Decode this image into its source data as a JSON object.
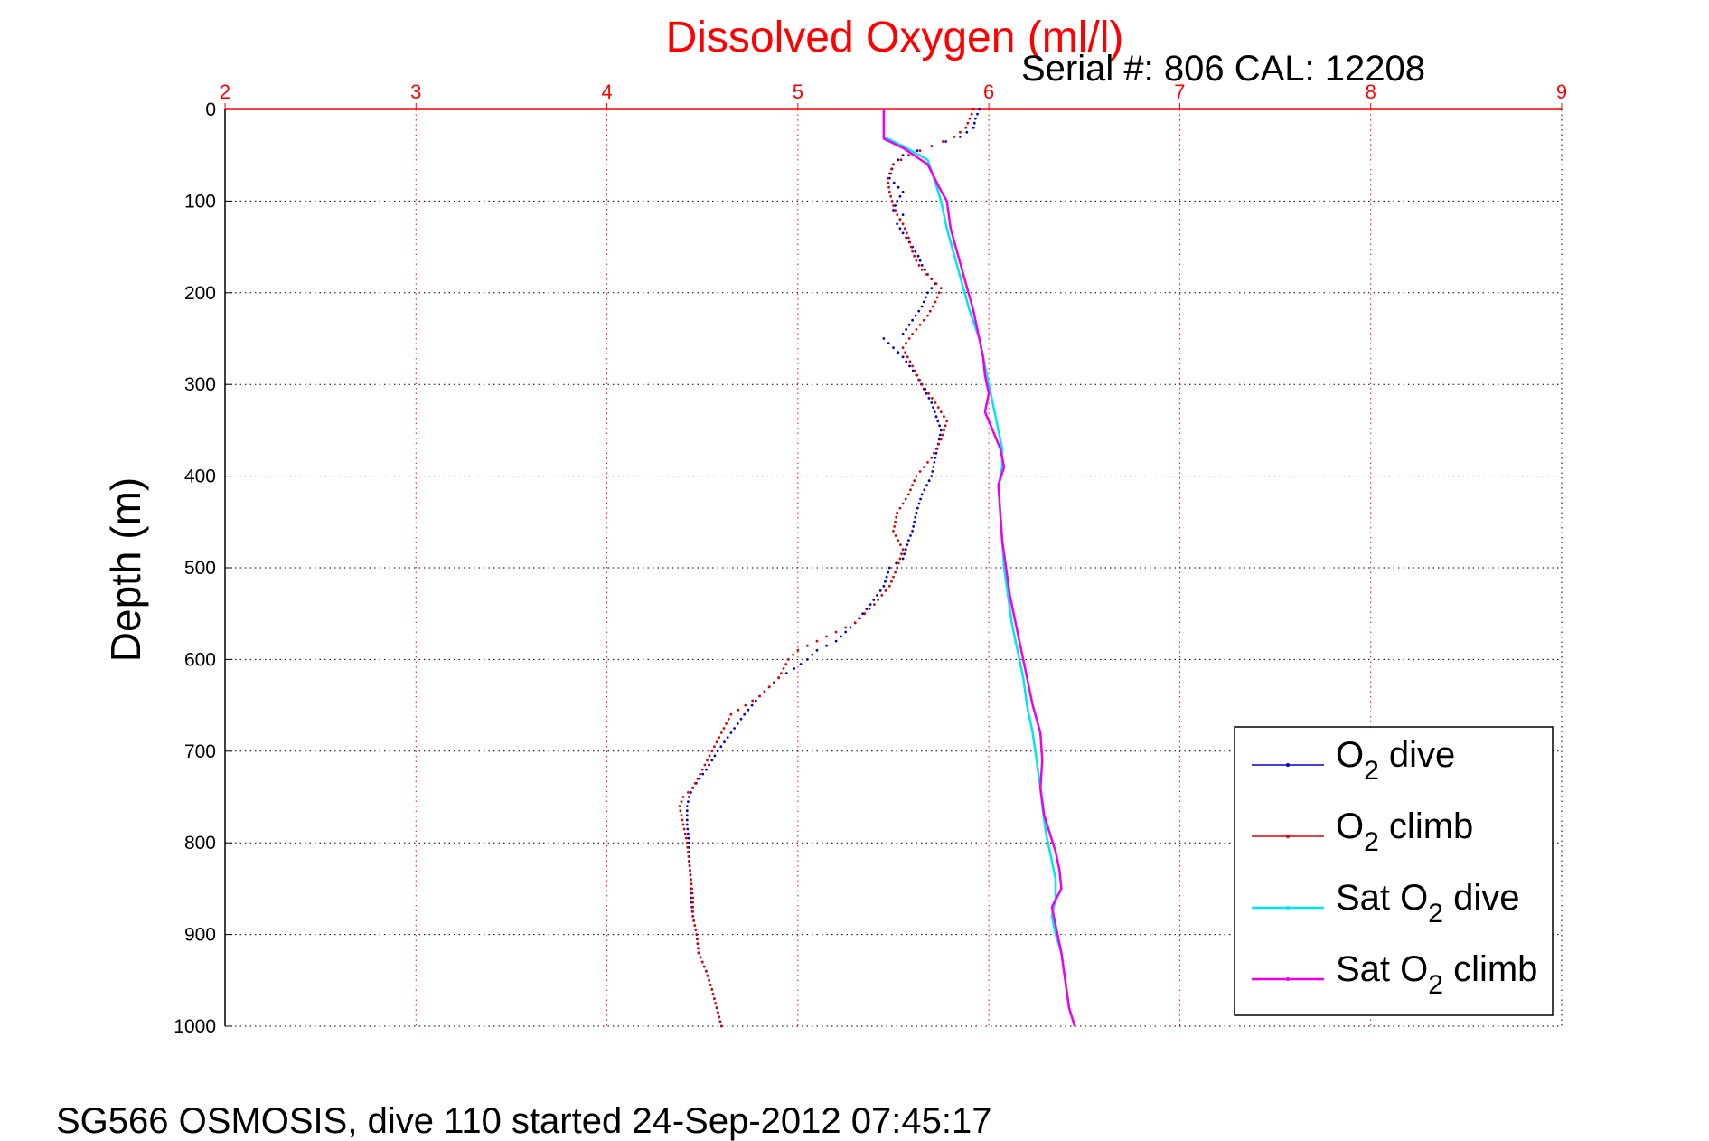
{
  "chart_data": {
    "type": "line",
    "title": "Dissolved Oxygen (ml/l)",
    "subtitle": "Serial #: 806  CAL: 12208",
    "ylabel": "Depth (m)",
    "footer": "SG566 OSMOSIS, dive 110 started 24-Sep-2012 07:45:17",
    "xlim": [
      2,
      9
    ],
    "ylim": [
      0,
      1000
    ],
    "y_reversed": true,
    "x_axis_position": "top",
    "x_ticks": [
      "2",
      "3",
      "4",
      "5",
      "6",
      "7",
      "8",
      "9"
    ],
    "y_ticks": [
      "0",
      "100",
      "200",
      "300",
      "400",
      "500",
      "600",
      "700",
      "800",
      "900",
      "1000"
    ],
    "grid": true,
    "legend_position": "bottom-right",
    "series": [
      {
        "name": "O₂ dive",
        "legend_main": "O",
        "legend_sub": "2",
        "legend_rest": " dive",
        "color": "#0000cc",
        "style": "dotted",
        "x": [
          5.95,
          5.93,
          5.92,
          5.85,
          5.7,
          5.55,
          5.5,
          5.48,
          5.55,
          5.52,
          5.5,
          5.55,
          5.52,
          5.55,
          5.6,
          5.63,
          5.65,
          5.68,
          5.72,
          5.68,
          5.65,
          5.6,
          5.55,
          5.45,
          5.55,
          5.62,
          5.7,
          5.75,
          5.72,
          5.7,
          5.65,
          5.62,
          5.6,
          5.58,
          5.55,
          5.48,
          5.45,
          5.38,
          5.3,
          5.2,
          5.1,
          5.05,
          4.98,
          4.9,
          4.8,
          4.72,
          4.65,
          4.58,
          4.52,
          4.45,
          4.43,
          4.42,
          4.42,
          4.43,
          4.43,
          4.44,
          4.44,
          4.45,
          4.47,
          4.48,
          4.52,
          4.55,
          4.6
        ],
        "y": [
          0,
          10,
          20,
          30,
          40,
          50,
          60,
          75,
          90,
          100,
          110,
          115,
          125,
          135,
          150,
          160,
          170,
          180,
          190,
          200,
          215,
          230,
          245,
          250,
          270,
          290,
          320,
          350,
          380,
          400,
          420,
          440,
          460,
          470,
          490,
          500,
          520,
          540,
          560,
          580,
          590,
          600,
          610,
          620,
          640,
          660,
          680,
          700,
          720,
          740,
          750,
          760,
          780,
          800,
          820,
          840,
          860,
          880,
          900,
          920,
          940,
          960,
          1000
        ]
      },
      {
        "name": "O₂ climb",
        "legend_main": "O",
        "legend_sub": "2",
        "legend_rest": " climb",
        "color": "#dd0000",
        "style": "dotted",
        "x": [
          5.92,
          5.9,
          5.88,
          5.82,
          5.7,
          5.58,
          5.5,
          5.47,
          5.48,
          5.5,
          5.52,
          5.55,
          5.58,
          5.6,
          5.62,
          5.65,
          5.7,
          5.75,
          5.72,
          5.68,
          5.6,
          5.55,
          5.6,
          5.65,
          5.72,
          5.78,
          5.75,
          5.7,
          5.62,
          5.58,
          5.52,
          5.5,
          5.55,
          5.52,
          5.48,
          5.4,
          5.3,
          5.2,
          5.1,
          5.0,
          4.95,
          4.9,
          4.8,
          4.65,
          4.6,
          4.55,
          4.5,
          4.45,
          4.4,
          4.38,
          4.4,
          4.42,
          4.43,
          4.44,
          4.45,
          4.45,
          4.47,
          4.48,
          4.52,
          4.55,
          4.6
        ],
        "y": [
          0,
          10,
          20,
          30,
          40,
          50,
          60,
          75,
          90,
          105,
          115,
          125,
          140,
          155,
          165,
          175,
          185,
          195,
          210,
          225,
          245,
          260,
          280,
          300,
          320,
          340,
          360,
          380,
          400,
          420,
          440,
          460,
          480,
          500,
          520,
          540,
          560,
          570,
          580,
          590,
          600,
          620,
          640,
          660,
          680,
          700,
          720,
          740,
          750,
          760,
          780,
          800,
          820,
          840,
          860,
          880,
          900,
          920,
          940,
          960,
          1000
        ]
      },
      {
        "name": "Sat O₂ dive",
        "legend_main": "Sat O",
        "legend_sub": "2",
        "legend_rest": " dive",
        "color": "#00e5ee",
        "style": "solid",
        "x": [
          5.45,
          5.45,
          5.55,
          5.68,
          5.72,
          5.75,
          5.78,
          5.82,
          5.86,
          5.9,
          5.95,
          5.98,
          6.0,
          6.02,
          6.05,
          6.07,
          6.07,
          6.05,
          6.06,
          6.07,
          6.08,
          6.1,
          6.12,
          6.15,
          6.18,
          6.2,
          6.23,
          6.25,
          6.27,
          6.28,
          6.3,
          6.33,
          6.35,
          6.35,
          6.33,
          6.35,
          6.38,
          6.4,
          6.42,
          6.45
        ],
        "y": [
          0,
          30,
          40,
          55,
          80,
          100,
          130,
          160,
          190,
          220,
          250,
          280,
          300,
          320,
          350,
          370,
          390,
          410,
          440,
          470,
          500,
          530,
          560,
          590,
          620,
          650,
          680,
          710,
          740,
          760,
          790,
          820,
          840,
          860,
          880,
          900,
          920,
          950,
          980,
          1000
        ]
      },
      {
        "name": "Sat O₂ climb",
        "legend_main": "Sat O",
        "legend_sub": "2",
        "legend_rest": " climb",
        "color": "#ee00ee",
        "style": "solid",
        "x": [
          5.45,
          5.45,
          5.55,
          5.68,
          5.74,
          5.78,
          5.8,
          5.84,
          5.88,
          5.92,
          5.95,
          5.97,
          5.98,
          6.0,
          5.98,
          6.02,
          6.06,
          6.08,
          6.05,
          6.06,
          6.07,
          6.09,
          6.11,
          6.14,
          6.17,
          6.2,
          6.23,
          6.27,
          6.28,
          6.27,
          6.29,
          6.32,
          6.35,
          6.37,
          6.38,
          6.33,
          6.35,
          6.38,
          6.4,
          6.42,
          6.45
        ],
        "y": [
          0,
          32,
          42,
          60,
          85,
          100,
          130,
          160,
          190,
          220,
          250,
          270,
          290,
          310,
          330,
          350,
          370,
          390,
          410,
          440,
          470,
          500,
          530,
          560,
          590,
          620,
          650,
          680,
          710,
          740,
          770,
          790,
          810,
          830,
          850,
          870,
          890,
          920,
          950,
          980,
          1000
        ]
      }
    ]
  }
}
